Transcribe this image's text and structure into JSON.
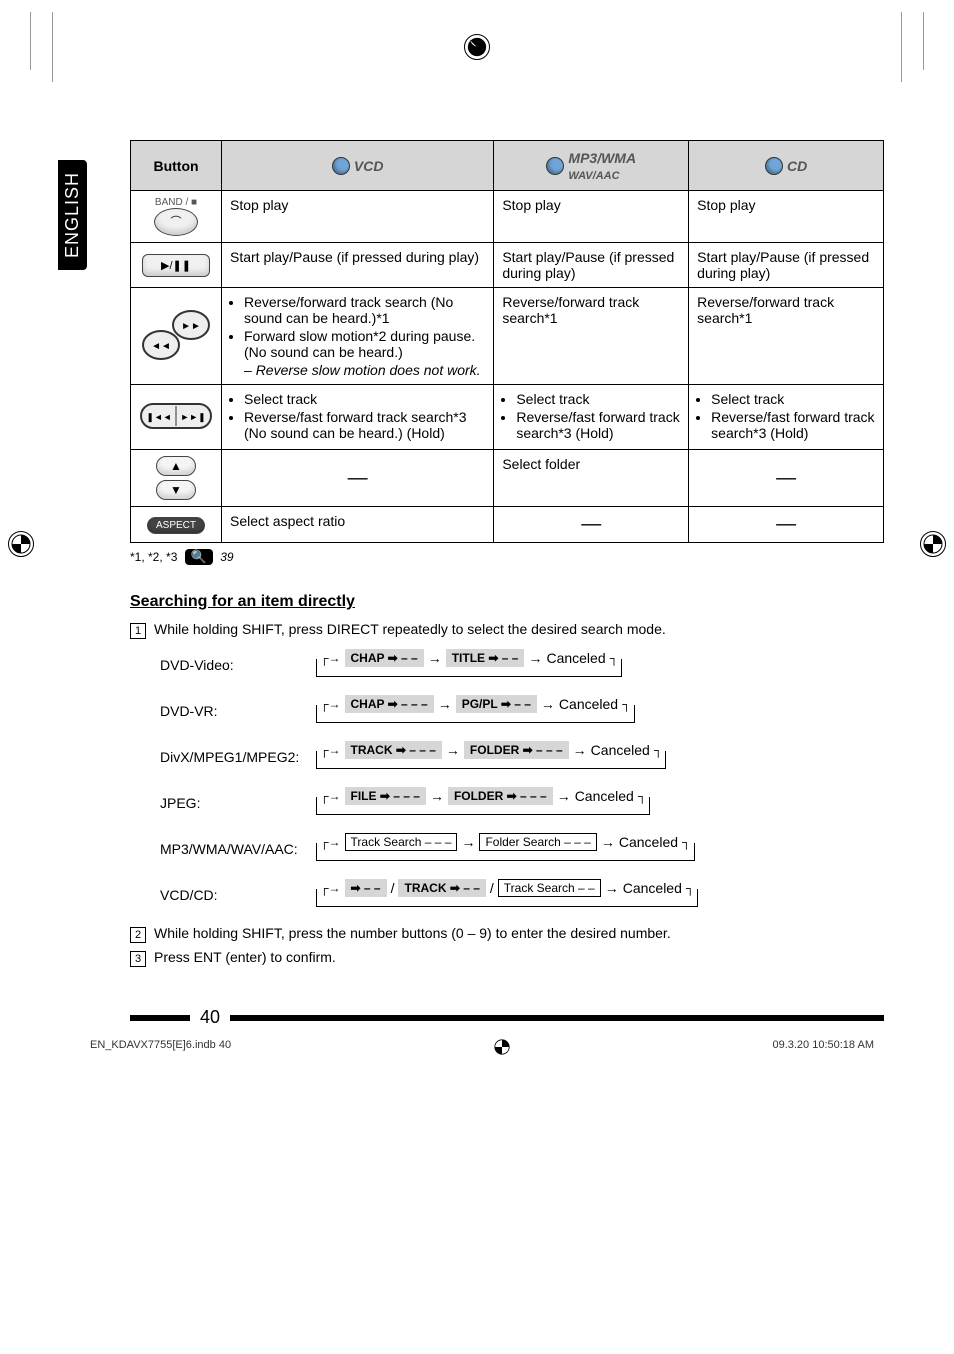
{
  "sidetab": "ENGLISH",
  "table": {
    "headers": {
      "button": "Button",
      "vcd": "VCD",
      "mp3": "MP3/WMA",
      "mp3sub": "WAV/AAC",
      "cd": "CD"
    },
    "rows": [
      {
        "btn_label": "BAND / ■",
        "vcd": "Stop play",
        "mp3": "Stop play",
        "cd": "Stop play"
      },
      {
        "btn_label": "▶/❚❚",
        "vcd": "Start play/Pause (if pressed during play)",
        "mp3": "Start play/Pause (if pressed during play)",
        "cd": "Start play/Pause (if pressed during play)"
      },
      {
        "vcd_list": [
          "Reverse/forward track search (No sound can be heard.)*1",
          "Forward slow motion*2 during pause. (No sound can be heard.)"
        ],
        "vcd_dash": "Reverse slow motion does not work.",
        "mp3": "Reverse/forward track search*1",
        "cd": "Reverse/forward track search*1"
      },
      {
        "vcd_list": [
          "Select track",
          "Reverse/fast forward track search*3 (No sound can be heard.) (Hold)"
        ],
        "mp3_list": [
          "Select track",
          "Reverse/fast forward track search*3 (Hold)"
        ],
        "cd_list": [
          "Select track",
          "Reverse/fast forward track search*3 (Hold)"
        ]
      },
      {
        "mp3": "Select folder"
      },
      {
        "btn_label": "ASPECT",
        "vcd": "Select aspect ratio"
      }
    ]
  },
  "footnote_prefix": "*1, *2, *3",
  "footnote_page": "39",
  "section_heading": "Searching for an item directly",
  "steps": {
    "s1": "While holding SHIFT, press DIRECT repeatedly to select the desired search mode.",
    "s2": "While holding SHIFT, press the number buttons (0 – 9) to enter the desired number.",
    "s3": "Press ENT (enter) to confirm."
  },
  "search_rows": [
    {
      "label": "DVD-Video:",
      "chips": [
        "CHAP ➡ – –",
        "TITLE ➡ – –"
      ],
      "tail": "Canceled"
    },
    {
      "label": "DVD-VR:",
      "chips": [
        "CHAP ➡ – – –",
        "PG/PL ➡ – –"
      ],
      "tail": "Canceled"
    },
    {
      "label": "DivX/MPEG1/MPEG2:",
      "chips": [
        "TRACK ➡ – – –",
        "FOLDER ➡ – – –"
      ],
      "tail": "Canceled"
    },
    {
      "label": "JPEG:",
      "chips": [
        "FILE ➡ – – –",
        "FOLDER ➡ – – –"
      ],
      "tail": "Canceled"
    },
    {
      "label": "MP3/WMA/WAV/AAC:",
      "outline_chips": [
        "Track Search – – –",
        "Folder Search – – –"
      ],
      "tail": "Canceled"
    },
    {
      "label": "VCD/CD:",
      "mixed": {
        "chip1": "➡ – –",
        "mid": "/",
        "chip2": "TRACK ➡ – –",
        "mid2": "/",
        "outline": "Track Search – –"
      },
      "tail": "Canceled"
    }
  ],
  "page_number": "40",
  "bottom_left": "EN_KDAVX7755[E]6.indb   40",
  "bottom_right": "09.3.20   10:50:18 AM"
}
